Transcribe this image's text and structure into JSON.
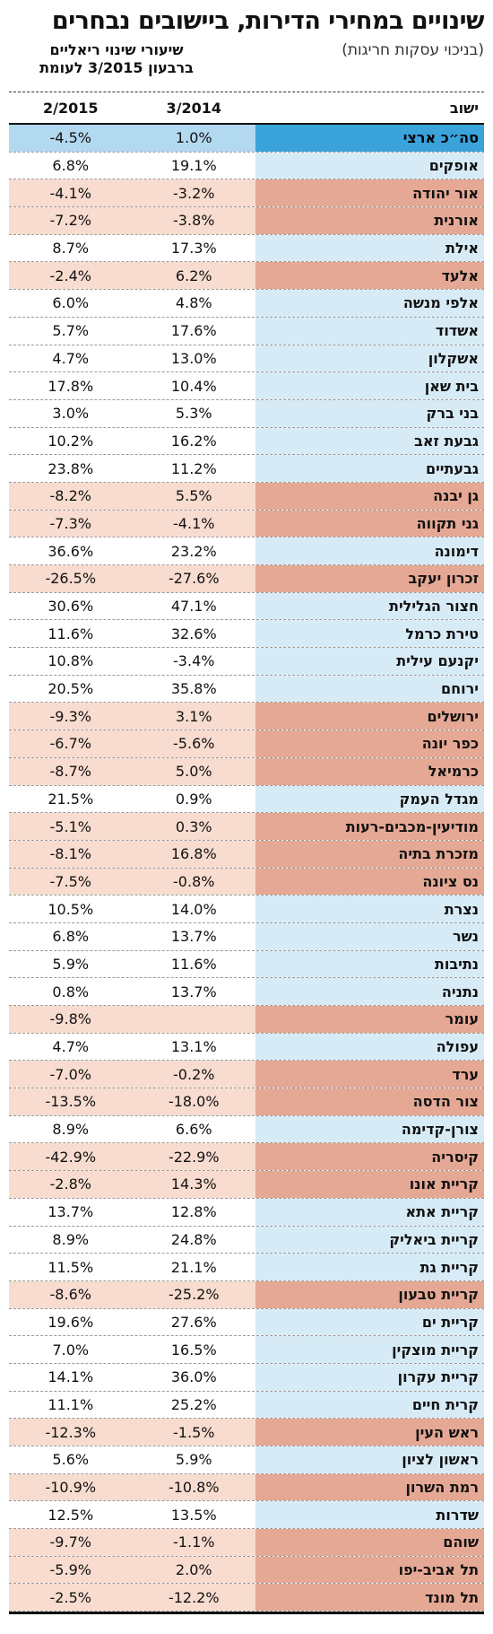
{
  "title": "שינויים במחירי הדירות, ביישובים נבחרים",
  "subtitle": "(בניכוי עסקות חריגות)",
  "column_note": [
    "שיעורי שינוי ריאליים",
    "ברבעון 3/2015 לעומת"
  ],
  "headers": {
    "settlement": "ישוב",
    "col_2014": "3/2014",
    "col_2015": "2/2015"
  },
  "colors": {
    "negative_name": "#e5a894",
    "negative_value": "#f8dccf",
    "positive_name": "#d7ebf6",
    "national": "#3aa3dc"
  },
  "rows": [
    {
      "name": "סה״כ ארצי",
      "v2014": "1.0%",
      "v2015": "-4.5%",
      "national": true
    },
    {
      "name": "אופקים",
      "v2014": "19.1%",
      "v2015": "6.8%"
    },
    {
      "name": "אור יהודה",
      "v2014": "-3.2%",
      "v2015": "-4.1%"
    },
    {
      "name": "אורנית",
      "v2014": "-3.8%",
      "v2015": "-7.2%"
    },
    {
      "name": "אילת",
      "v2014": "17.3%",
      "v2015": "8.7%"
    },
    {
      "name": "אלעד",
      "v2014": "6.2%",
      "v2015": "-2.4%"
    },
    {
      "name": "אלפי מנשה",
      "v2014": "4.8%",
      "v2015": "6.0%"
    },
    {
      "name": "אשדוד",
      "v2014": "17.6%",
      "v2015": "5.7%"
    },
    {
      "name": "אשקלון",
      "v2014": "13.0%",
      "v2015": "4.7%"
    },
    {
      "name": "בית שאן",
      "v2014": "10.4%",
      "v2015": "17.8%"
    },
    {
      "name": "בני ברק",
      "v2014": "5.3%",
      "v2015": "3.0%"
    },
    {
      "name": "גבעת זאב",
      "v2014": "16.2%",
      "v2015": "10.2%"
    },
    {
      "name": "גבעתיים",
      "v2014": "11.2%",
      "v2015": "23.8%"
    },
    {
      "name": "גן יבנה",
      "v2014": "5.5%",
      "v2015": "-8.2%"
    },
    {
      "name": "גני תקווה",
      "v2014": "-4.1%",
      "v2015": "-7.3%"
    },
    {
      "name": "דימונה",
      "v2014": "23.2%",
      "v2015": "36.6%"
    },
    {
      "name": "זכרון יעקב",
      "v2014": "-27.6%",
      "v2015": "-26.5%"
    },
    {
      "name": "חצור הגלילית",
      "v2014": "47.1%",
      "v2015": "30.6%"
    },
    {
      "name": "טירת כרמל",
      "v2014": "32.6%",
      "v2015": "11.6%"
    },
    {
      "name": "יקנעם עילית",
      "v2014": "-3.4%",
      "v2015": "10.8%"
    },
    {
      "name": "ירוחם",
      "v2014": "35.8%",
      "v2015": "20.5%"
    },
    {
      "name": "ירושלים",
      "v2014": "3.1%",
      "v2015": "-9.3%"
    },
    {
      "name": "כפר יונה",
      "v2014": "-5.6%",
      "v2015": "-6.7%"
    },
    {
      "name": "כרמיאל",
      "v2014": "5.0%",
      "v2015": "-8.7%"
    },
    {
      "name": "מגדל העמק",
      "v2014": "0.9%",
      "v2015": "21.5%"
    },
    {
      "name": "מודיעין-מכבים-רעות",
      "v2014": "0.3%",
      "v2015": "-5.1%"
    },
    {
      "name": "מזכרת בתיה",
      "v2014": "16.8%",
      "v2015": "-8.1%"
    },
    {
      "name": "נס ציונה",
      "v2014": "-0.8%",
      "v2015": "-7.5%"
    },
    {
      "name": "נצרת",
      "v2014": "14.0%",
      "v2015": "10.5%"
    },
    {
      "name": "נשר",
      "v2014": "13.7%",
      "v2015": "6.8%"
    },
    {
      "name": "נתיבות",
      "v2014": "11.6%",
      "v2015": "5.9%"
    },
    {
      "name": "נתניה",
      "v2014": "13.7%",
      "v2015": "0.8%"
    },
    {
      "name": "עומר",
      "v2014": "",
      "v2015": "-9.8%"
    },
    {
      "name": "עפולה",
      "v2014": "13.1%",
      "v2015": "4.7%"
    },
    {
      "name": "ערד",
      "v2014": "-0.2%",
      "v2015": "-7.0%"
    },
    {
      "name": "צור הדסה",
      "v2014": "-18.0%",
      "v2015": "-13.5%"
    },
    {
      "name": "צורן-קדימה",
      "v2014": "6.6%",
      "v2015": "8.9%"
    },
    {
      "name": "קיסריה",
      "v2014": "-22.9%",
      "v2015": "-42.9%"
    },
    {
      "name": "קריית אונו",
      "v2014": "14.3%",
      "v2015": "-2.8%"
    },
    {
      "name": "קריית אתא",
      "v2014": "12.8%",
      "v2015": "13.7%"
    },
    {
      "name": "קריית ביאליק",
      "v2014": "24.8%",
      "v2015": "8.9%"
    },
    {
      "name": "קריית גת",
      "v2014": "21.1%",
      "v2015": "11.5%"
    },
    {
      "name": "קריית טבעון",
      "v2014": "-25.2%",
      "v2015": "-8.6%"
    },
    {
      "name": "קריית ים",
      "v2014": "27.6%",
      "v2015": "19.6%"
    },
    {
      "name": "קריית מוצקין",
      "v2014": "16.5%",
      "v2015": "7.0%"
    },
    {
      "name": "קריית עקרון",
      "v2014": "36.0%",
      "v2015": "14.1%"
    },
    {
      "name": "קרית חיים",
      "v2014": "25.2%",
      "v2015": "11.1%"
    },
    {
      "name": "ראש העין",
      "v2014": "-1.5%",
      "v2015": "-12.3%"
    },
    {
      "name": "ראשון לציון",
      "v2014": "5.9%",
      "v2015": "5.6%"
    },
    {
      "name": "רמת השרון",
      "v2014": "-10.8%",
      "v2015": "-10.9%"
    },
    {
      "name": "שדרות",
      "v2014": "13.5%",
      "v2015": "12.5%"
    },
    {
      "name": "שוהם",
      "v2014": "-1.1%",
      "v2015": "-9.7%"
    },
    {
      "name": "תל אביב-יפו",
      "v2014": "2.0%",
      "v2015": "-5.9%"
    },
    {
      "name": "תל מונד",
      "v2014": "-12.2%",
      "v2015": "-2.5%"
    }
  ]
}
